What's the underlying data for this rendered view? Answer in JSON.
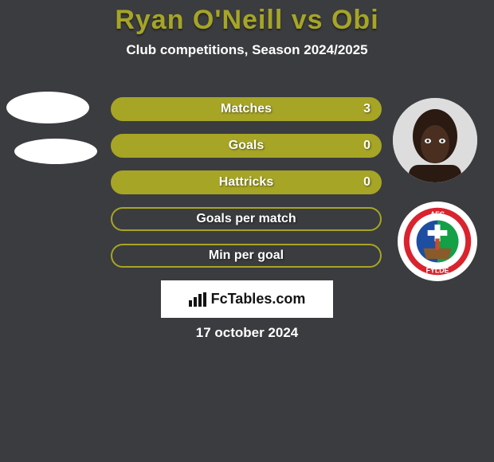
{
  "title": "Ryan O'Neill vs Obi",
  "subtitle": "Club competitions, Season 2024/2025",
  "colors": {
    "accent": "#a6a526",
    "background": "#3b3c3f",
    "text": "#ffffff",
    "brand_bg": "#ffffff",
    "brand_text": "#131313"
  },
  "bars": [
    {
      "label": "Matches",
      "value_right": "3",
      "filled": true
    },
    {
      "label": "Goals",
      "value_right": "0",
      "filled": true
    },
    {
      "label": "Hattricks",
      "value_right": "0",
      "filled": true
    },
    {
      "label": "Goals per match",
      "value_right": "",
      "filled": false
    },
    {
      "label": "Min per goal",
      "value_right": "",
      "filled": false
    }
  ],
  "brand": {
    "icon": "bar-chart-icon",
    "text": "FcTables.com"
  },
  "date": "17 october 2024",
  "right_badge": {
    "top_text": "AFC",
    "bottom_text": "FYLDE"
  }
}
